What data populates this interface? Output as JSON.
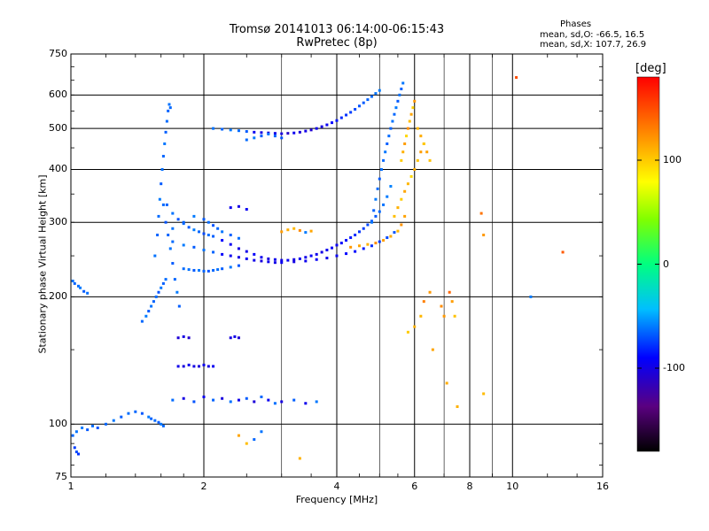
{
  "chart_data": {
    "type": "scatter",
    "title": "Tromsø 20141013 06:14:00-06:15:43",
    "subtitle": "RwPretec (8p)",
    "xlabel": "Frequency [MHz]",
    "ylabel": "Stationary phase Virtual Height [km]",
    "x_scale": "log",
    "y_scale": "log",
    "xlim": [
      1,
      16
    ],
    "ylim": [
      75,
      750
    ],
    "x_ticks": [
      1,
      2,
      4,
      6,
      8,
      10,
      16
    ],
    "y_ticks": [
      75,
      100,
      200,
      300,
      400,
      500,
      600,
      750
    ],
    "x_minor_ticks": [
      3,
      5,
      7,
      9
    ],
    "grid": true,
    "phases_block": {
      "heading": "Phases",
      "line_o": "mean, sd,O: -66.5, 16.5",
      "line_x": "mean, sd,X: 107.7, 26.9"
    },
    "colorbar": {
      "label": "[deg]",
      "range": [
        -180,
        180
      ],
      "ticks": [
        100,
        0,
        -100
      ]
    },
    "series": [
      {
        "freq": [
          1.01,
          1.03,
          1.06,
          1.09,
          1.12,
          1.15,
          1.2,
          1.25,
          1.3,
          1.35,
          1.4,
          1.45,
          1.5,
          1.52,
          1.55,
          1.58,
          1.6,
          1.62
        ],
        "height": [
          94,
          96,
          98,
          97,
          99,
          98,
          100,
          102,
          104,
          106,
          107,
          106,
          104,
          103,
          102,
          101,
          100,
          99
        ],
        "phase": [
          -65,
          -62,
          -60,
          -68,
          -64,
          -70,
          -66,
          -61,
          -67,
          -63,
          -65,
          -69,
          -60,
          -66,
          -64,
          -68,
          -62,
          -65
        ]
      },
      {
        "freq": [
          1.01,
          1.02,
          1.04,
          1.05,
          1.07,
          1.09
        ],
        "height": [
          218,
          215,
          212,
          210,
          206,
          204
        ],
        "phase": [
          -62,
          -66,
          -64,
          -60,
          -68,
          -63
        ]
      },
      {
        "freq": [
          1.02,
          1.03,
          1.04
        ],
        "height": [
          88,
          86,
          85
        ],
        "phase": [
          -75,
          -72,
          -78
        ]
      },
      {
        "freq": [
          1.45,
          1.48,
          1.5,
          1.52,
          1.54,
          1.56,
          1.58,
          1.6,
          1.62,
          1.64
        ],
        "height": [
          175,
          180,
          185,
          190,
          195,
          200,
          205,
          210,
          215,
          220
        ],
        "phase": [
          -65,
          -60,
          -68,
          -62,
          -66,
          -64,
          -70,
          -61,
          -67,
          -63
        ]
      },
      {
        "freq": [
          1.55,
          1.57,
          1.58,
          1.59,
          1.6,
          1.61,
          1.62,
          1.63,
          1.64,
          1.65,
          1.66,
          1.67,
          1.68
        ],
        "height": [
          250,
          280,
          310,
          340,
          370,
          400,
          430,
          460,
          490,
          520,
          550,
          570,
          560
        ],
        "phase": [
          -62,
          -66,
          -64,
          -60,
          -68,
          -63,
          -65,
          -61,
          -67,
          -64,
          -66,
          -62,
          -65
        ]
      },
      {
        "freq": [
          1.62,
          1.64,
          1.66,
          1.68,
          1.7,
          1.72,
          1.74,
          1.76
        ],
        "height": [
          330,
          300,
          280,
          260,
          240,
          220,
          205,
          190
        ],
        "phase": [
          -64,
          -70,
          -66,
          -62,
          -68,
          -65,
          -60,
          -67
        ]
      },
      {
        "freq": [
          1.65,
          1.7,
          1.75,
          1.8,
          1.85,
          1.9,
          1.95,
          2.0,
          2.05,
          2.1,
          2.2,
          2.3,
          2.4,
          2.5,
          2.6,
          2.7,
          2.8,
          2.9,
          3.0,
          3.1,
          3.2,
          3.3,
          3.4,
          3.5,
          3.6,
          3.7,
          3.8,
          3.9,
          4.0,
          4.1,
          4.2,
          4.3,
          4.4,
          4.5,
          4.6,
          4.7,
          4.8,
          4.9,
          5.0,
          5.1,
          5.2,
          5.3
        ],
        "height": [
          330,
          315,
          305,
          298,
          292,
          288,
          285,
          282,
          280,
          278,
          272,
          266,
          260,
          256,
          252,
          248,
          246,
          245,
          244,
          244,
          245,
          246,
          248,
          250,
          252,
          255,
          258,
          261,
          265,
          268,
          272,
          276,
          280,
          285,
          290,
          296,
          302,
          310,
          318,
          330,
          345,
          365
        ],
        "phase": [
          -66,
          -62,
          -70,
          -64,
          -68,
          -60,
          -65,
          -72,
          -63,
          -67,
          -90,
          -95,
          -100,
          -98,
          -92,
          -96,
          -102,
          -97,
          -99,
          -94,
          -101,
          -95,
          -98,
          -93,
          -97,
          -100,
          -96,
          -92,
          -95,
          -90,
          -88,
          -85,
          -80,
          -78,
          -75,
          -72,
          -70,
          -68,
          -65,
          -62,
          -60,
          -58
        ]
      },
      {
        "freq": [
          1.7,
          1.8,
          1.9,
          2.0,
          2.1,
          2.2,
          2.3,
          2.4,
          2.5,
          2.6,
          2.7,
          2.8,
          2.9,
          3.0,
          3.2,
          3.4,
          3.6,
          3.8,
          4.0,
          4.2,
          4.4,
          4.6,
          4.8,
          5.0,
          5.2,
          5.4
        ],
        "height": [
          270,
          265,
          262,
          258,
          255,
          252,
          250,
          248,
          246,
          244,
          243,
          242,
          241,
          241,
          242,
          243,
          245,
          247,
          250,
          253,
          256,
          260,
          264,
          270,
          276,
          284
        ],
        "phase": [
          -64,
          -60,
          -68,
          -62,
          -66,
          -92,
          -96,
          -100,
          -94,
          -98,
          -102,
          -97,
          -99,
          -95,
          -100,
          -96,
          -93,
          -98,
          -94,
          -90,
          -88,
          -84,
          -80,
          -76,
          -72,
          -70
        ]
      },
      {
        "freq": [
          1.7,
          1.8,
          1.9,
          2.0,
          2.05,
          2.1,
          2.15,
          2.2,
          2.3,
          2.4
        ],
        "height": [
          290,
          300,
          310,
          305,
          300,
          295,
          290,
          285,
          280,
          275
        ],
        "phase": [
          -62,
          -66,
          -60,
          -68,
          -64,
          -70,
          -65,
          -61,
          -67,
          -63
        ]
      },
      {
        "freq": [
          1.8,
          1.85,
          1.9,
          1.95,
          2.0,
          2.05,
          2.1,
          2.15,
          2.2,
          2.3,
          2.4
        ],
        "height": [
          233,
          232,
          231,
          231,
          230,
          230,
          231,
          232,
          233,
          235,
          237
        ],
        "phase": [
          -64,
          -62,
          -68,
          -60,
          -66,
          -70,
          -65,
          -63,
          -67,
          -61,
          -69
        ]
      },
      {
        "freq": [
          4.3,
          4.5,
          4.7,
          4.9,
          5.1,
          5.3,
          5.5,
          5.6,
          5.7
        ],
        "height": [
          262,
          264,
          266,
          268,
          272,
          278,
          286,
          296,
          310
        ],
        "phase": [
          120,
          115,
          110,
          125,
          118,
          112,
          108,
          122,
          116
        ]
      },
      {
        "freq": [
          5.4,
          5.5,
          5.6,
          5.7,
          5.8,
          5.9,
          6.0,
          6.1,
          6.2,
          6.3
        ],
        "height": [
          310,
          325,
          340,
          355,
          370,
          385,
          400,
          420,
          440,
          460
        ],
        "phase": [
          105,
          110,
          100,
          115,
          108,
          95,
          112,
          104,
          118,
          98
        ]
      },
      {
        "freq": [
          2.1,
          2.2,
          2.3,
          2.4,
          2.5,
          2.6,
          2.7,
          2.8,
          2.9,
          3.0,
          3.1,
          3.2,
          3.3,
          3.4,
          3.5,
          3.6,
          3.7,
          3.8,
          3.9,
          4.0,
          4.1,
          4.2,
          4.3,
          4.4,
          4.5,
          4.6,
          4.7,
          4.8,
          4.9,
          5.0
        ],
        "height": [
          500,
          498,
          496,
          494,
          492,
          490,
          489,
          488,
          487,
          486,
          487,
          488,
          490,
          493,
          496,
          500,
          505,
          510,
          516,
          522,
          530,
          538,
          546,
          555,
          565,
          575,
          585,
          595,
          605,
          615
        ],
        "phase": [
          -62,
          -66,
          -60,
          -64,
          -68,
          -95,
          -100,
          -105,
          -98,
          -102,
          -110,
          -96,
          -104,
          -99,
          -106,
          -97,
          -101,
          -95,
          -90,
          -85,
          -80,
          -78,
          -75,
          -72,
          -70,
          -68,
          -66,
          -64,
          -62,
          -60
        ]
      },
      {
        "freq": [
          2.5,
          2.6,
          2.7,
          2.8,
          2.9,
          3.0
        ],
        "height": [
          470,
          475,
          480,
          485,
          480,
          475
        ],
        "phase": [
          -64,
          -60,
          -68,
          -62,
          -66,
          -70
        ]
      },
      {
        "freq": [
          4.8,
          4.85,
          4.9,
          4.95,
          5.0,
          5.05,
          5.1,
          5.15,
          5.2,
          5.25,
          5.3,
          5.35,
          5.4,
          5.45,
          5.5,
          5.55,
          5.6,
          5.65
        ],
        "height": [
          300,
          320,
          340,
          360,
          380,
          400,
          420,
          440,
          460,
          480,
          500,
          520,
          540,
          560,
          580,
          600,
          620,
          640
        ],
        "phase": [
          -62,
          -66,
          -60,
          -64,
          -68,
          -63,
          -65,
          -61,
          -67,
          -64,
          -66,
          -62,
          -65,
          -60,
          -68,
          -63,
          -66,
          -61
        ]
      },
      {
        "freq": [
          5.6,
          5.65,
          5.7,
          5.75,
          5.8,
          5.85,
          5.9,
          5.95,
          6.0,
          6.1,
          6.2,
          6.3,
          6.4,
          6.5
        ],
        "height": [
          420,
          440,
          460,
          480,
          500,
          520,
          540,
          560,
          580,
          500,
          480,
          460,
          440,
          420
        ],
        "phase": [
          100,
          110,
          118,
          95,
          125,
          105,
          115,
          98,
          120,
          108,
          112,
          102,
          116,
          104
        ]
      },
      {
        "freq": [
          1.75,
          1.8,
          1.85,
          1.9,
          1.95,
          2.0,
          2.05,
          2.1
        ],
        "height": [
          137,
          137,
          138,
          137,
          137,
          138,
          137,
          137
        ],
        "phase": [
          -98,
          -102,
          -96,
          -100,
          -104,
          -97,
          -101,
          -95
        ]
      },
      {
        "freq": [
          1.7,
          1.8,
          1.9,
          2.0,
          2.1,
          2.2,
          2.3,
          2.4,
          2.5,
          2.6,
          2.7,
          2.8,
          2.9,
          3.0,
          3.2,
          3.4,
          3.6
        ],
        "height": [
          114,
          115,
          113,
          116,
          114,
          115,
          113,
          114,
          115,
          113,
          116,
          114,
          112,
          113,
          114,
          112,
          113
        ],
        "phase": [
          -64,
          -100,
          -70,
          -96,
          -66,
          -102,
          -62,
          -98,
          -68,
          -104,
          -65,
          -95,
          -63,
          -101,
          -67,
          -97,
          -61
        ]
      },
      {
        "freq": [
          1.75,
          1.8,
          1.85
        ],
        "height": [
          160,
          161,
          160
        ],
        "phase": [
          -105,
          -100,
          -108
        ]
      },
      {
        "freq": [
          2.3,
          2.35,
          2.4
        ],
        "height": [
          160,
          161,
          160
        ],
        "phase": [
          -102,
          -98,
          -106
        ]
      },
      {
        "freq": [
          2.3,
          2.4,
          2.5
        ],
        "height": [
          325,
          327,
          322
        ],
        "phase": [
          -96,
          -100,
          -94
        ]
      },
      {
        "freq": [
          6.3,
          6.5,
          6.9,
          7.2,
          7.5,
          8.5,
          8.6,
          10.2,
          11,
          13
        ],
        "height": [
          195,
          205,
          190,
          205,
          110,
          315,
          280,
          660,
          200,
          255
        ],
        "phase": [
          130,
          120,
          125,
          140,
          110,
          135,
          120,
          150,
          -60,
          145
        ]
      },
      {
        "freq": [
          5.8,
          6.0,
          6.2,
          6.6,
          7.0,
          7.1,
          7.3,
          7.4,
          8.6
        ],
        "height": [
          165,
          170,
          180,
          150,
          180,
          125,
          195,
          180,
          118
        ],
        "phase": [
          100,
          110,
          108,
          115,
          120,
          112,
          118,
          104,
          106
        ]
      },
      {
        "freq": [
          3.0,
          3.1,
          3.2,
          3.3,
          3.4,
          3.5
        ],
        "height": [
          285,
          288,
          290,
          287,
          284,
          286
        ],
        "phase": [
          118,
          112,
          108,
          125,
          -60,
          115
        ]
      },
      {
        "freq": [
          2.4,
          2.5,
          2.6,
          2.7,
          3.3
        ],
        "height": [
          94,
          90,
          92,
          96,
          83
        ],
        "phase": [
          115,
          105,
          -65,
          -62,
          110
        ]
      }
    ]
  }
}
